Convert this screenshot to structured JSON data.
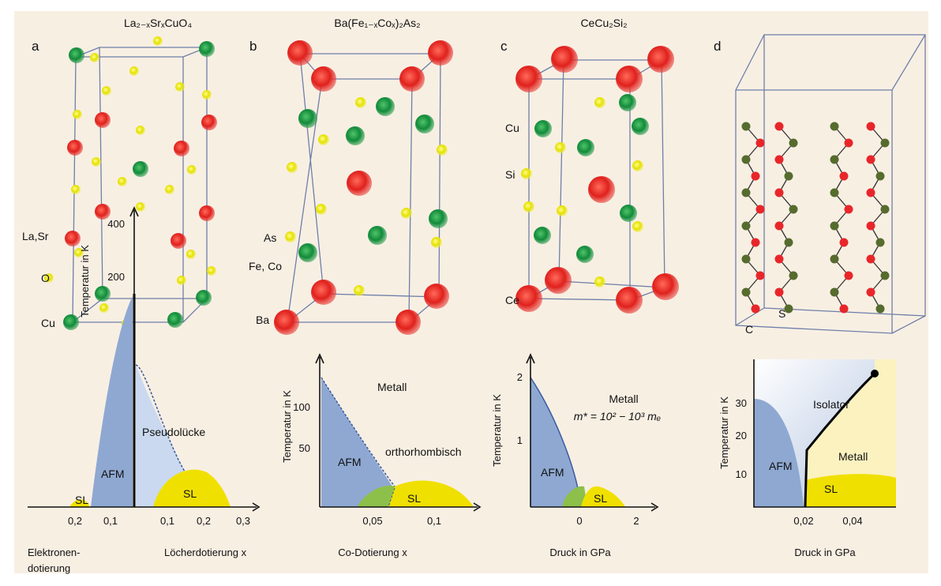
{
  "panels": [
    {
      "letter": "a",
      "title": "La₂₋ₓSrₓCuO₄",
      "atoms": [
        "La,Sr",
        "O",
        "Cu"
      ],
      "diagram": {
        "y_label": "Temperatur in K",
        "y_ticks": [
          "400",
          "200"
        ],
        "x_ticks": [
          "0,2",
          "0,1",
          "0,1",
          "0,2",
          "0,3"
        ],
        "x_labels": [
          "Elektronen-",
          "dotierung",
          "Löcherdotierung x"
        ],
        "regions": [
          "SL",
          "AFM",
          "Pseudolücke",
          "SL"
        ]
      }
    },
    {
      "letter": "b",
      "title": "Ba(Fe₁₋ₓCoₓ)₂As₂",
      "atoms": [
        "As",
        "Fe, Co",
        "Ba"
      ],
      "diagram": {
        "y_label": "Temperatur in K",
        "y_ticks": [
          "100",
          "50"
        ],
        "x_ticks": [
          "0,05",
          "0,1"
        ],
        "x_labels": [
          "Co-Dotierung x"
        ],
        "regions": [
          "Metall",
          "orthorhombisch",
          "AFM",
          "SL"
        ]
      }
    },
    {
      "letter": "c",
      "title": "CeCu₂Si₂",
      "atoms": [
        "Cu",
        "Si",
        "Ce"
      ],
      "diagram": {
        "y_label": "Temperatur in K",
        "y_ticks": [
          "2",
          "1"
        ],
        "x_ticks": [
          "0",
          "2"
        ],
        "x_labels": [
          "Druck in GPa"
        ],
        "regions": [
          "Metall",
          "m* = 10² − 10³ mₑ",
          "AFM",
          "SL"
        ]
      }
    },
    {
      "letter": "d",
      "title": "",
      "atoms": [
        "C",
        "S"
      ],
      "diagram": {
        "y_label": "Temperatur in K",
        "y_ticks": [
          "30",
          "20",
          "10"
        ],
        "x_ticks": [
          "0,02",
          "0,04"
        ],
        "x_labels": [
          "Druck in GPa"
        ],
        "regions": [
          "Isolator",
          "AFM",
          "Metall",
          "SL"
        ]
      }
    }
  ]
}
